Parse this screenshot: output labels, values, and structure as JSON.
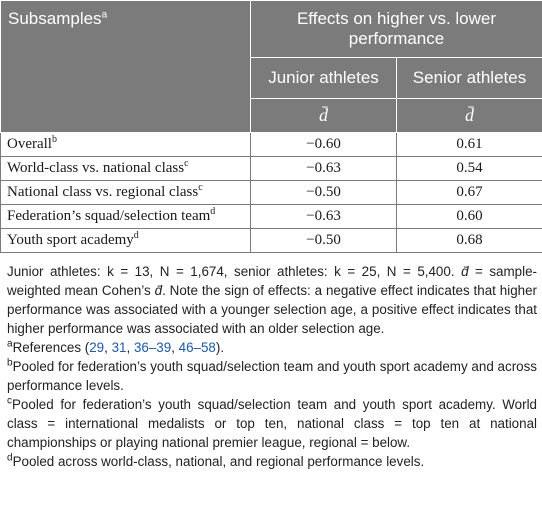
{
  "header": {
    "subsamples": "Subsamples",
    "subsamples_sup": "a",
    "effects": "Effects on higher vs. lower performance",
    "junior": "Junior athletes",
    "senior": "Senior athletes",
    "dbar_junior": "d̄",
    "dbar_senior": "d̄"
  },
  "rows": [
    {
      "label": "Overall",
      "sup": "b",
      "junior": "−0.60",
      "senior": "0.61"
    },
    {
      "label": "World-class vs. national class",
      "sup": "c",
      "junior": "−0.63",
      "senior": "0.54"
    },
    {
      "label": "National class vs. regional class",
      "sup": "c",
      "junior": "−0.50",
      "senior": "0.67"
    },
    {
      "label": "Federation’s squad/selection team",
      "sup": "d",
      "junior": "−0.63",
      "senior": "0.60"
    },
    {
      "label": "Youth sport academy",
      "sup": "d",
      "junior": "−0.50",
      "senior": "0.68"
    }
  ],
  "notes": {
    "main_pre": "Junior athletes: k = 13, N = 1,674, senior athletes: k = 25, N = 5,400. ",
    "dbar": "d̄",
    "main_mid": " = sample-weighted mean Cohen’s ",
    "main_post": ". Note the sign of effects: a negative effect indicates that higher performance was associated with a younger selection age, a positive effect indicates that higher performance was associated with an older selection age.",
    "a_marker": "a",
    "a_pre": "References (",
    "a_refs": [
      "29",
      "31",
      "36–39",
      "46–58"
    ],
    "a_post": ").",
    "b_marker": "b",
    "b_text": "Pooled for federation’s youth squad/selection team and youth sport academy and across performance levels.",
    "c_marker": "c",
    "c_text": "Pooled for federation’s youth squad/selection team and youth sport academy. World class = international medalists or top ten, national class = top ten at national championships or playing national premier league, regional = below.",
    "d_marker": "d",
    "d_text": "Pooled across world-class, national, and regional performance levels."
  }
}
